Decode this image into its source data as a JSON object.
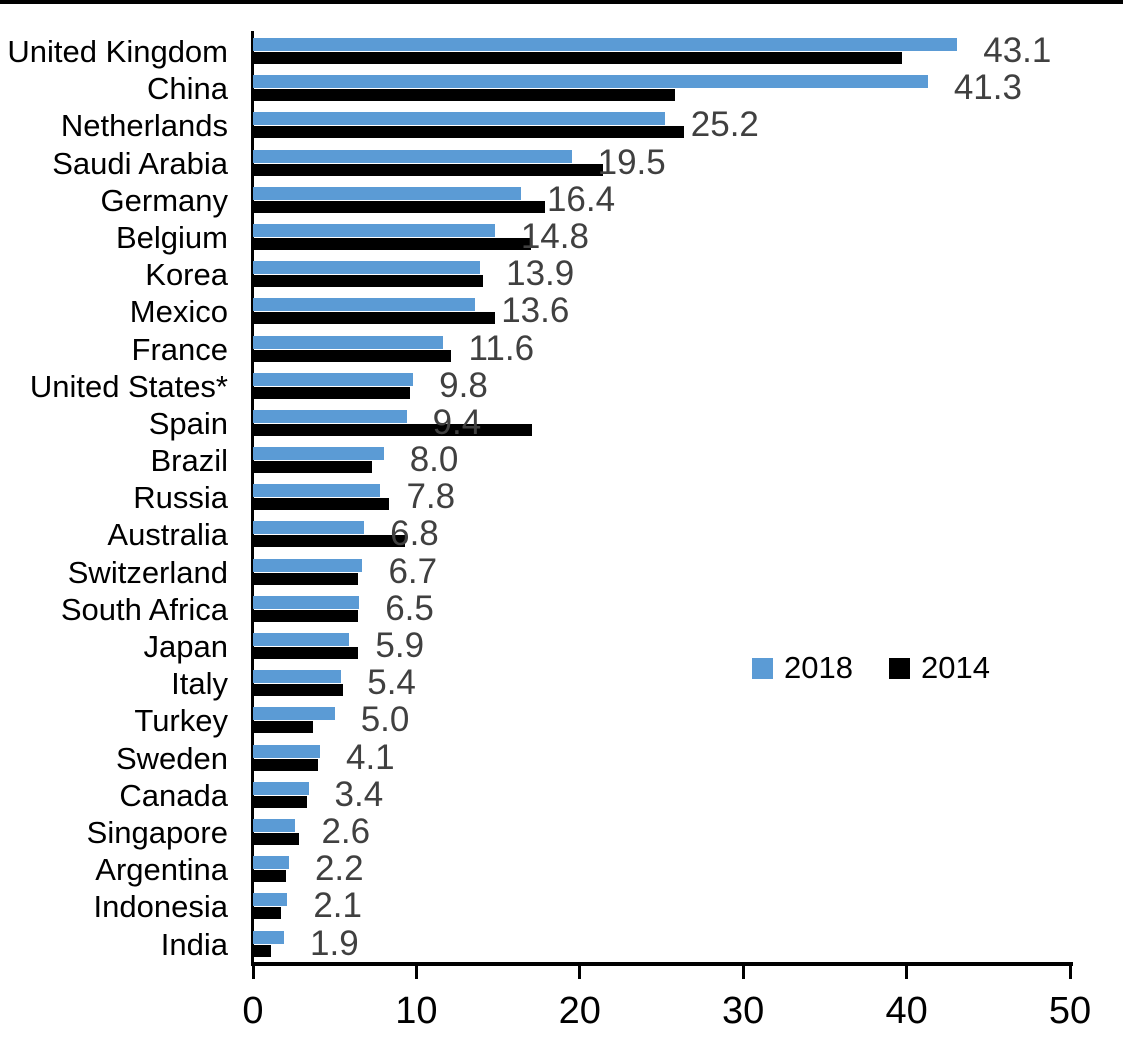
{
  "chart_data": {
    "type": "bar",
    "orientation": "horizontal",
    "title": "",
    "categories": [
      "United Kingdom",
      "China",
      "Netherlands",
      "Saudi Arabia",
      "Germany",
      "Belgium",
      "Korea",
      "Mexico",
      "France",
      "United States*",
      "Spain",
      "Brazil",
      "Russia",
      "Australia",
      "Switzerland",
      "South Africa",
      "Japan",
      "Italy",
      "Turkey",
      "Sweden",
      "Canada",
      "Singapore",
      "Argentina",
      "Indonesia",
      "India"
    ],
    "series": [
      {
        "name": "2018",
        "color": "#5B9BD5",
        "values": [
          43.1,
          41.3,
          25.2,
          19.5,
          16.4,
          14.8,
          13.9,
          13.6,
          11.6,
          9.8,
          9.4,
          8.0,
          7.8,
          6.8,
          6.7,
          6.5,
          5.9,
          5.4,
          5.0,
          4.1,
          3.4,
          2.6,
          2.2,
          2.1,
          1.9
        ],
        "data_labels": [
          "43.1",
          "41.3",
          "25.2",
          "19.5",
          "16.4",
          "14.8",
          "13.9",
          "13.6",
          "11.6",
          "9.8",
          "9.4",
          "8.0",
          "7.8",
          "6.8",
          "6.7",
          "6.5",
          "5.9",
          "5.4",
          "5.0",
          "4.1",
          "3.4",
          "2.6",
          "2.2",
          "2.1",
          "1.9"
        ]
      },
      {
        "name": "2014",
        "color": "#000000",
        "values": [
          39.7,
          25.8,
          26.4,
          21.4,
          17.9,
          17.0,
          14.1,
          14.8,
          12.1,
          9.6,
          17.1,
          7.3,
          8.3,
          9.3,
          6.4,
          6.4,
          6.4,
          5.5,
          3.7,
          4.0,
          3.3,
          2.8,
          2.0,
          1.7,
          1.1
        ]
      }
    ],
    "xlim": [
      0,
      50
    ],
    "x_ticks": [
      "0",
      "10",
      "20",
      "30",
      "40",
      "50"
    ],
    "grid": false,
    "legend_position": "center-right",
    "value_label_color": "#404040",
    "axis_color": "#000000"
  }
}
